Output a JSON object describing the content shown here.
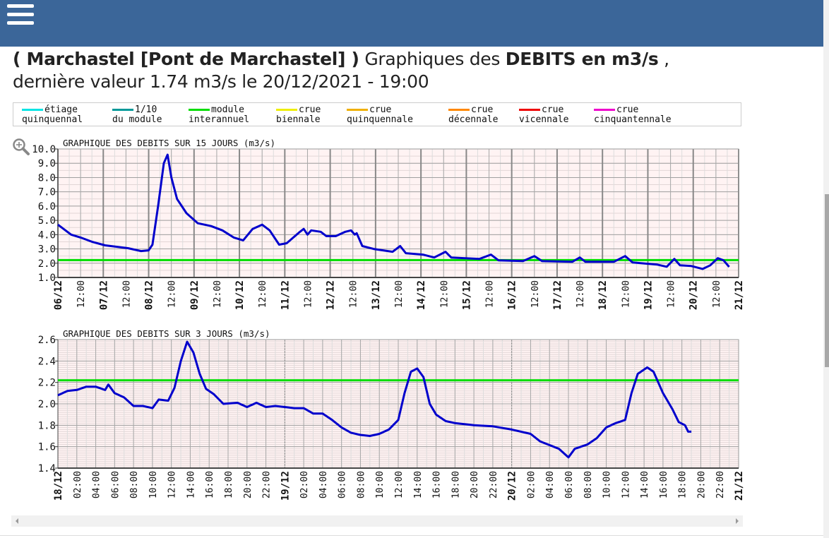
{
  "header": {
    "menu_icon": "hamburger-icon",
    "color": "#3b6699"
  },
  "title": {
    "station": "( Marchastel [Pont de Marchastel] )",
    "text1": " Graphiques des ",
    "bold": "DEBITS en m3/s",
    "text2": " ,",
    "line2": "dernière valeur 1.74 m3/s le 20/12/2021 - 19:00"
  },
  "legend": [
    {
      "l1": "étiage",
      "l2": "quinquennal",
      "color": "#00e5e5"
    },
    {
      "l1": "1/10",
      "l2": "du module",
      "color": "#009999"
    },
    {
      "l1": "module",
      "l2": "interannuel",
      "color": "#00dd00"
    },
    {
      "l1": "crue",
      "l2": "biennale",
      "color": "#eeee00"
    },
    {
      "l1": "crue",
      "l2": "quinquennale",
      "color": "#f0b000"
    },
    {
      "l1": "crue",
      "l2": "décennale",
      "color": "#ff8800"
    },
    {
      "l1": "crue",
      "l2": "vicennale",
      "color": "#ee0000"
    },
    {
      "l1": "crue",
      "l2": "cinquantennale",
      "color": "#ee00cc"
    }
  ],
  "zoom_icon": "zoom-in-icon",
  "chart_data": [
    {
      "type": "line",
      "title": "GRAPHIQUE DES DEBITS SUR 15 JOURS (m3/s)",
      "year": 2021,
      "xrange": [
        "06/12 00:00",
        "21/12 00:00"
      ],
      "xticks_every_hours": 12,
      "ylim": [
        1.0,
        10.0
      ],
      "yticks": [
        "1.0",
        "2.0",
        "3.0",
        "4.0",
        "5.0",
        "6.0",
        "7.0",
        "8.0",
        "9.0",
        "10.0"
      ],
      "ystep": 1.0,
      "grid": true,
      "background": "#fff3f3",
      "series_color": "#0000cc",
      "reference": {
        "name": "module interannuel",
        "value": 2.22,
        "color": "#00dd00"
      },
      "points": [
        [
          "06/12 00:00",
          4.7
        ],
        [
          "06/12 07:00",
          4.0
        ],
        [
          "06/12 12:00",
          3.8
        ],
        [
          "06/12 18:00",
          3.5
        ],
        [
          "07/12 01:00",
          3.25
        ],
        [
          "07/12 13:00",
          3.05
        ],
        [
          "07/12 20:00",
          2.85
        ],
        [
          "08/12 00:00",
          2.9
        ],
        [
          "08/12 02:00",
          3.3
        ],
        [
          "08/12 05:00",
          6.0
        ],
        [
          "08/12 08:00",
          9.0
        ],
        [
          "08/12 10:00",
          9.6
        ],
        [
          "08/12 12:00",
          8.0
        ],
        [
          "08/12 15:00",
          6.5
        ],
        [
          "08/12 20:00",
          5.5
        ],
        [
          "09/12 02:00",
          4.8
        ],
        [
          "09/12 09:00",
          4.6
        ],
        [
          "09/12 15:00",
          4.3
        ],
        [
          "09/12 21:00",
          3.8
        ],
        [
          "10/12 02:00",
          3.6
        ],
        [
          "10/12 07:00",
          4.4
        ],
        [
          "10/12 12:00",
          4.7
        ],
        [
          "10/12 16:00",
          4.3
        ],
        [
          "10/12 21:00",
          3.3
        ],
        [
          "11/12 01:00",
          3.4
        ],
        [
          "11/12 08:00",
          4.2
        ],
        [
          "11/12 10:00",
          4.4
        ],
        [
          "11/12 12:00",
          4.0
        ],
        [
          "11/12 14:00",
          4.3
        ],
        [
          "11/12 19:00",
          4.2
        ],
        [
          "11/12 22:00",
          3.9
        ],
        [
          "12/12 03:00",
          3.9
        ],
        [
          "12/12 08:00",
          4.2
        ],
        [
          "12/12 11:00",
          4.3
        ],
        [
          "12/12 13:00",
          4.0
        ],
        [
          "12/12 14:00",
          4.1
        ],
        [
          "12/12 17:00",
          3.2
        ],
        [
          "12/12 23:00",
          3.0
        ],
        [
          "13/12 09:00",
          2.8
        ],
        [
          "13/12 13:00",
          3.2
        ],
        [
          "13/12 16:00",
          2.7
        ],
        [
          "14/12 01:00",
          2.6
        ],
        [
          "14/12 07:00",
          2.4
        ],
        [
          "14/12 13:00",
          2.8
        ],
        [
          "14/12 16:00",
          2.4
        ],
        [
          "15/12 07:00",
          2.3
        ],
        [
          "15/12 13:00",
          2.6
        ],
        [
          "15/12 17:00",
          2.2
        ],
        [
          "16/12 06:00",
          2.15
        ],
        [
          "16/12 12:00",
          2.5
        ],
        [
          "16/12 16:00",
          2.15
        ],
        [
          "17/12 08:00",
          2.1
        ],
        [
          "17/12 12:00",
          2.4
        ],
        [
          "17/12 15:00",
          2.1
        ],
        [
          "18/12 06:00",
          2.1
        ],
        [
          "18/12 12:00",
          2.5
        ],
        [
          "18/12 16:00",
          2.05
        ],
        [
          "19/12 05:00",
          1.9
        ],
        [
          "19/12 10:00",
          1.75
        ],
        [
          "19/12 14:00",
          2.3
        ],
        [
          "19/12 17:00",
          1.85
        ],
        [
          "19/12 23:00",
          1.8
        ],
        [
          "20/12 05:00",
          1.6
        ],
        [
          "20/12 09:00",
          1.85
        ],
        [
          "20/12 13:00",
          2.35
        ],
        [
          "20/12 16:00",
          2.2
        ],
        [
          "20/12 19:00",
          1.74
        ]
      ]
    },
    {
      "type": "line",
      "title": "GRAPHIQUE DES DEBITS SUR 3 JOURS (m3/s)",
      "year": 2021,
      "xrange": [
        "18/12 00:00",
        "21/12 00:00"
      ],
      "xticks_every_hours": 2,
      "ylim": [
        1.4,
        2.6
      ],
      "yticks": [
        "1.4",
        "1.6",
        "1.8",
        "2.0",
        "2.2",
        "2.4",
        "2.6"
      ],
      "ystep": 0.2,
      "grid": true,
      "background": "#fff3f3",
      "series_color": "#0000cc",
      "reference": {
        "name": "module interannuel",
        "value": 2.22,
        "color": "#00dd00"
      },
      "points": [
        [
          "18/12 00:00",
          2.08
        ],
        [
          "18/12 01:00",
          2.12
        ],
        [
          "18/12 02:00",
          2.13
        ],
        [
          "18/12 03:00",
          2.16
        ],
        [
          "18/12 04:00",
          2.16
        ],
        [
          "18/12 05:00",
          2.13
        ],
        [
          "18/12 05:20",
          2.18
        ],
        [
          "18/12 06:00",
          2.1
        ],
        [
          "18/12 07:00",
          2.06
        ],
        [
          "18/12 08:00",
          1.98
        ],
        [
          "18/12 09:00",
          1.98
        ],
        [
          "18/12 10:00",
          1.96
        ],
        [
          "18/12 10:40",
          2.04
        ],
        [
          "18/12 11:40",
          2.03
        ],
        [
          "18/12 12:20",
          2.15
        ],
        [
          "18/12 13:00",
          2.4
        ],
        [
          "18/12 13:40",
          2.58
        ],
        [
          "18/12 14:20",
          2.48
        ],
        [
          "18/12 15:00",
          2.28
        ],
        [
          "18/12 15:40",
          2.14
        ],
        [
          "18/12 16:30",
          2.09
        ],
        [
          "18/12 17:30",
          2.0
        ],
        [
          "18/12 19:00",
          2.01
        ],
        [
          "18/12 20:00",
          1.97
        ],
        [
          "18/12 21:00",
          2.01
        ],
        [
          "18/12 22:00",
          1.97
        ],
        [
          "18/12 23:00",
          1.98
        ],
        [
          "19/12 00:00",
          1.97
        ],
        [
          "19/12 01:00",
          1.96
        ],
        [
          "19/12 02:00",
          1.96
        ],
        [
          "19/12 03:00",
          1.91
        ],
        [
          "19/12 04:00",
          1.91
        ],
        [
          "19/12 05:00",
          1.85
        ],
        [
          "19/12 06:00",
          1.78
        ],
        [
          "19/12 07:00",
          1.73
        ],
        [
          "19/12 08:00",
          1.71
        ],
        [
          "19/12 09:00",
          1.7
        ],
        [
          "19/12 10:00",
          1.72
        ],
        [
          "19/12 11:00",
          1.76
        ],
        [
          "19/12 12:00",
          1.85
        ],
        [
          "19/12 12:40",
          2.1
        ],
        [
          "19/12 13:20",
          2.3
        ],
        [
          "19/12 14:00",
          2.33
        ],
        [
          "19/12 14:40",
          2.25
        ],
        [
          "19/12 15:20",
          2.0
        ],
        [
          "19/12 16:00",
          1.9
        ],
        [
          "19/12 17:00",
          1.84
        ],
        [
          "19/12 18:00",
          1.82
        ],
        [
          "19/12 20:00",
          1.8
        ],
        [
          "19/12 22:00",
          1.79
        ],
        [
          "20/12 00:00",
          1.76
        ],
        [
          "20/12 02:00",
          1.72
        ],
        [
          "20/12 03:00",
          1.65
        ],
        [
          "20/12 05:00",
          1.58
        ],
        [
          "20/12 06:00",
          1.5
        ],
        [
          "20/12 06:40",
          1.58
        ],
        [
          "20/12 08:00",
          1.62
        ],
        [
          "20/12 09:00",
          1.68
        ],
        [
          "20/12 10:00",
          1.78
        ],
        [
          "20/12 11:00",
          1.82
        ],
        [
          "20/12 12:00",
          1.85
        ],
        [
          "20/12 12:40",
          2.1
        ],
        [
          "20/12 13:20",
          2.28
        ],
        [
          "20/12 14:20",
          2.34
        ],
        [
          "20/12 15:00",
          2.3
        ],
        [
          "20/12 16:00",
          2.1
        ],
        [
          "20/12 17:00",
          1.95
        ],
        [
          "20/12 17:40",
          1.83
        ],
        [
          "20/12 18:20",
          1.8
        ],
        [
          "20/12 18:40",
          1.74
        ],
        [
          "20/12 19:00",
          1.74
        ]
      ]
    }
  ]
}
